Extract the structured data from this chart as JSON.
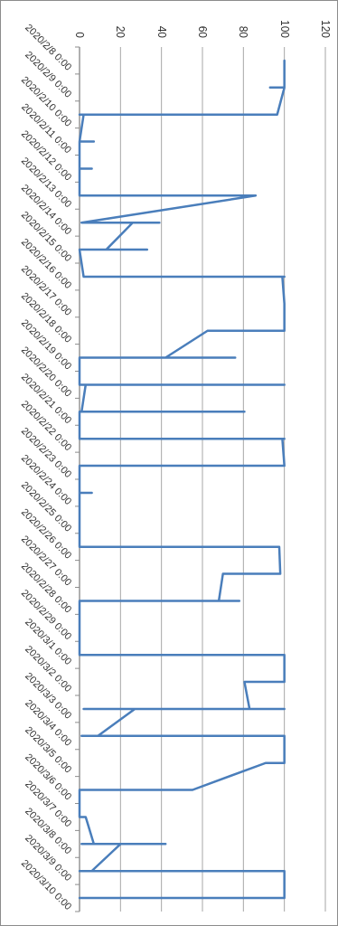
{
  "chart_data": {
    "type": "line",
    "orientation": "horizontal",
    "color": "#4a7ebb",
    "marker": "none",
    "grid": "x",
    "x": [
      "2020-02-08T12:00",
      "2020-02-09T12:00",
      "2020-02-09T12:00",
      "2020-02-09T12:00",
      "2020-02-10T12:00",
      "2020-02-10T12:00",
      "2020-02-10T12:00",
      "2020-02-11T12:00",
      "2020-02-11T12:00",
      "2020-02-11T12:00",
      "2020-02-12T12:00",
      "2020-02-12T12:00",
      "2020-02-12T12:00",
      "2020-02-13T12:00",
      "2020-02-13T12:00",
      "2020-02-14T12:00",
      "2020-02-14T12:00",
      "2020-02-14T12:00",
      "2020-02-15T12:00",
      "2020-02-15T12:00",
      "2020-02-15T12:00",
      "2020-02-16T12:00",
      "2020-02-16T12:00",
      "2020-02-16T12:00",
      "2020-02-17T12:00",
      "2020-02-18T12:00",
      "2020-02-18T12:00",
      "2020-02-19T12:00",
      "2020-02-19T12:00",
      "2020-02-19T12:00",
      "2020-02-20T12:00",
      "2020-02-20T12:00",
      "2020-02-20T12:00",
      "2020-02-21T12:00",
      "2020-02-21T12:00",
      "2020-02-21T12:00",
      "2020-02-22T12:00",
      "2020-02-22T12:00",
      "2020-02-22T12:00",
      "2020-02-23T12:00",
      "2020-02-23T12:00",
      "2020-02-24T12:00",
      "2020-02-24T12:00",
      "2020-02-24T12:00",
      "2020-02-25T12:00",
      "2020-02-26T12:00",
      "2020-02-26T12:00",
      "2020-02-27T12:00",
      "2020-02-27T12:00",
      "2020-02-28T12:00",
      "2020-02-28T12:00",
      "2020-02-28T12:00",
      "2020-02-29T12:00",
      "2020-03-01T12:00",
      "2020-03-01T12:00",
      "2020-03-02T12:00",
      "2020-03-02T12:00",
      "2020-03-03T12:00",
      "2020-03-03T12:00",
      "2020-03-03T12:00",
      "2020-03-03T12:00",
      "2020-03-04T12:00",
      "2020-03-04T12:00",
      "2020-03-04T12:00",
      "2020-03-05T12:00",
      "2020-03-05T12:00",
      "2020-03-06T12:00",
      "2020-03-06T12:00",
      "2020-03-07T12:00",
      "2020-03-07T12:00",
      "2020-03-08T12:00",
      "2020-03-08T12:00",
      "2020-03-08T12:00",
      "2020-03-08T12:00",
      "2020-03-09T12:00",
      "2020-03-09T12:00",
      "2020-03-09T12:00",
      "2020-03-10T12:00",
      "2020-03-10T12:00"
    ],
    "values": [
      100,
      100,
      93,
      100,
      96.5,
      0,
      2,
      0,
      7,
      0,
      0,
      6,
      0,
      0,
      86,
      1,
      39,
      26,
      13,
      33,
      0,
      2,
      100,
      99,
      100,
      100,
      62.5,
      42,
      76,
      0,
      0,
      100,
      3,
      1,
      80.5,
      0,
      0,
      100,
      99,
      100,
      0,
      0,
      6,
      0,
      0,
      0,
      97.5,
      98,
      70,
      68,
      78,
      0,
      0,
      0,
      100,
      100,
      80.5,
      83,
      100,
      2,
      27,
      9,
      1,
      100,
      100,
      91,
      55,
      0,
      0,
      3,
      7,
      1,
      42,
      20,
      6,
      0,
      100,
      100,
      0
    ],
    "ylim": [
      "2020-03-11",
      "2020-02-08"
    ],
    "yticks": [
      {
        "value": "2020-02-08",
        "label": "2020/2/8 0:00"
      },
      {
        "value": "2020-02-09",
        "label": "2020/2/9 0:00"
      },
      {
        "value": "2020-02-10",
        "label": "2020/2/10 0:00"
      },
      {
        "value": "2020-02-11",
        "label": "2020/2/11 0:00"
      },
      {
        "value": "2020-02-12",
        "label": "2020/2/12 0:00"
      },
      {
        "value": "2020-02-13",
        "label": "2020/2/13 0:00"
      },
      {
        "value": "2020-02-14",
        "label": "2020/2/14 0:00"
      },
      {
        "value": "2020-02-15",
        "label": "2020/2/15 0:00"
      },
      {
        "value": "2020-02-16",
        "label": "2020/2/16 0:00"
      },
      {
        "value": "2020-02-17",
        "label": "2020/2/17 0:00"
      },
      {
        "value": "2020-02-18",
        "label": "2020/2/18 0:00"
      },
      {
        "value": "2020-02-19",
        "label": "2020/2/19 0:00"
      },
      {
        "value": "2020-02-20",
        "label": "2020/2/20 0:00"
      },
      {
        "value": "2020-02-21",
        "label": "2020/2/21 0:00"
      },
      {
        "value": "2020-02-22",
        "label": "2020/2/22 0:00"
      },
      {
        "value": "2020-02-23",
        "label": "2020/2/23 0:00"
      },
      {
        "value": "2020-02-24",
        "label": "2020/2/24 0:00"
      },
      {
        "value": "2020-02-25",
        "label": "2020/2/25 0:00"
      },
      {
        "value": "2020-02-26",
        "label": "2020/2/26 0:00"
      },
      {
        "value": "2020-02-27",
        "label": "2020/2/27 0:00"
      },
      {
        "value": "2020-02-28",
        "label": "2020/2/28 0:00"
      },
      {
        "value": "2020-02-29",
        "label": "2020/2/29 0:00"
      },
      {
        "value": "2020-03-01",
        "label": "2020/3/1 0:00"
      },
      {
        "value": "2020-03-02",
        "label": "2020/3/2 0:00"
      },
      {
        "value": "2020-03-03",
        "label": "2020/3/3 0:00"
      },
      {
        "value": "2020-03-04",
        "label": "2020/3/4 0:00"
      },
      {
        "value": "2020-03-05",
        "label": "2020/3/5 0:00"
      },
      {
        "value": "2020-03-06",
        "label": "2020/3/6 0:00"
      },
      {
        "value": "2020-03-07",
        "label": "2020/3/7 0:00"
      },
      {
        "value": "2020-03-08",
        "label": "2020/3/8 0:00"
      },
      {
        "value": "2020-03-09",
        "label": "2020/3/9 0:00"
      },
      {
        "value": "2020-03-10",
        "label": "2020/3/10 0:00"
      },
      {
        "value": "2020-03-11",
        "label": null
      }
    ],
    "xlim": [
      0,
      120
    ],
    "xticks": [
      0,
      20,
      40,
      60,
      80,
      100,
      120
    ]
  }
}
